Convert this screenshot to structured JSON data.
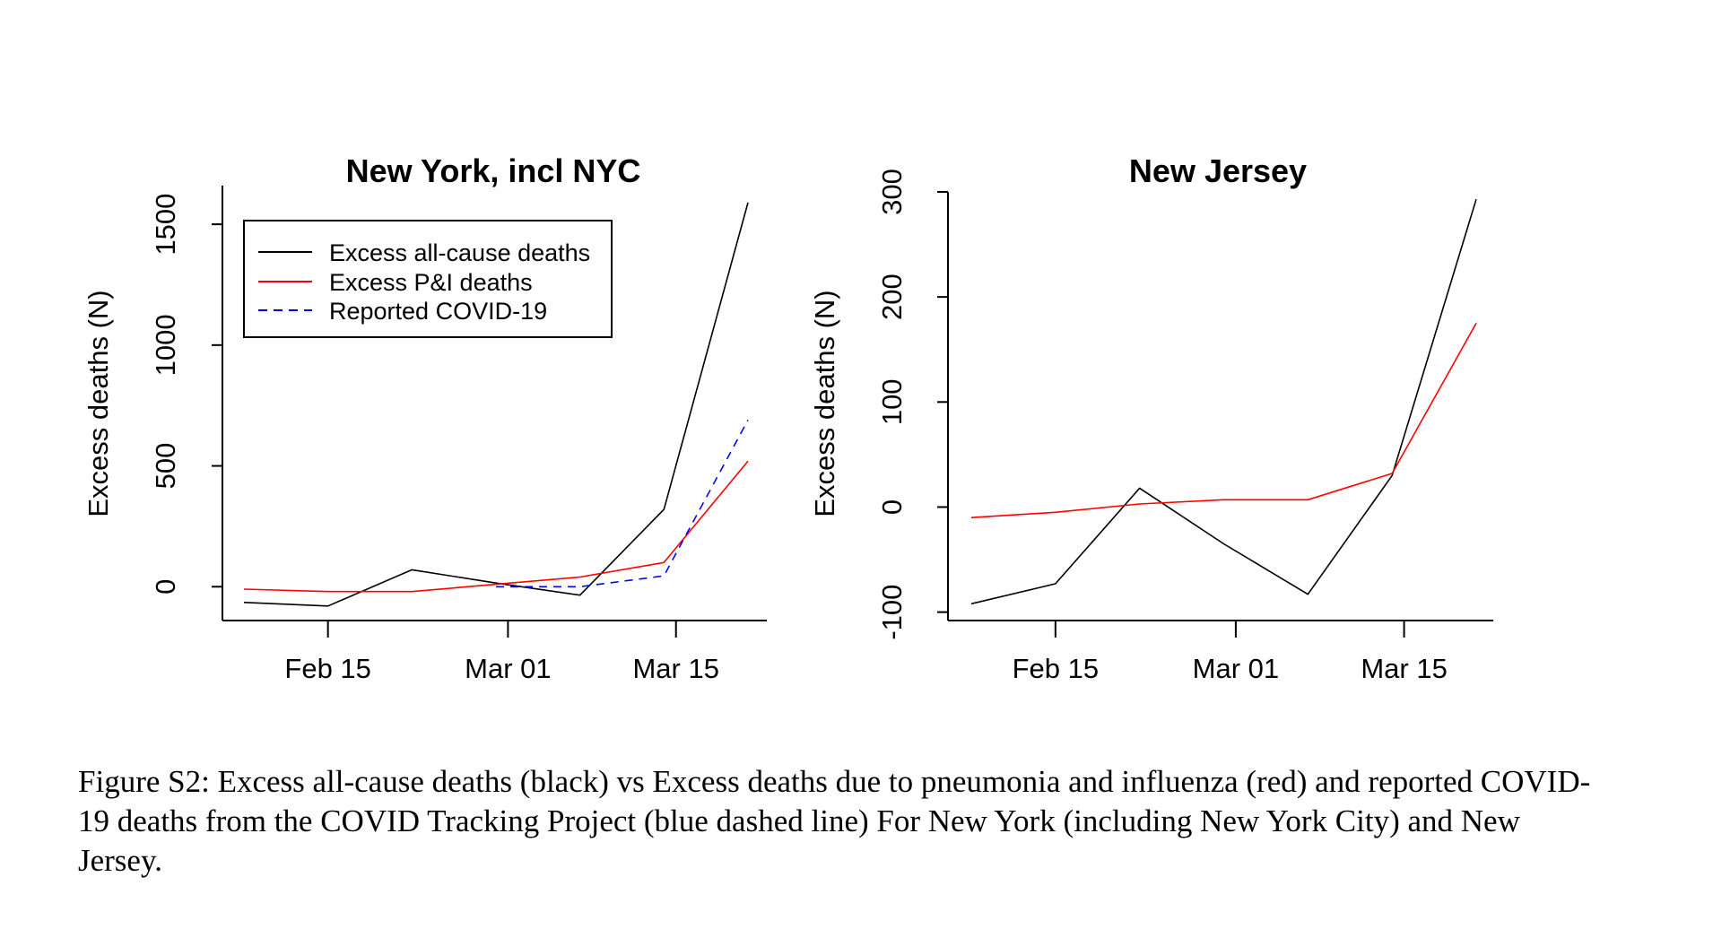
{
  "caption": "Figure S2: Excess all-cause deaths (black) vs Excess deaths due to pneumonia and influenza (red) and reported COVID-19 deaths from the COVID Tracking Project (blue dashed line) For New York (including New York City) and New Jersey.",
  "chart_data": [
    {
      "type": "line",
      "title": "New York, incl NYC",
      "xlabel": "",
      "ylabel": "Excess deaths (N)",
      "x_ticks": [
        "Feb 15",
        "Mar 01",
        "Mar 15"
      ],
      "y_ticks": [
        0,
        500,
        1000,
        1500
      ],
      "ylim": [
        -140,
        1660
      ],
      "x": [
        "2020-02-08",
        "2020-02-15",
        "2020-02-22",
        "2020-02-29",
        "2020-03-07",
        "2020-03-14",
        "2020-03-21"
      ],
      "legend_position": "top-left",
      "series": [
        {
          "name": "Excess all-cause deaths",
          "color": "#000000",
          "dash": "solid",
          "values": [
            -65,
            -80,
            70,
            15,
            -35,
            320,
            1590
          ]
        },
        {
          "name": "Excess P&I deaths",
          "color": "#ff0000",
          "dash": "solid",
          "values": [
            -10,
            -20,
            -20,
            10,
            40,
            100,
            520
          ]
        },
        {
          "name": "Reported COVID-19",
          "color": "#0000ff",
          "dash": "dashed",
          "x": [
            "2020-02-29",
            "2020-03-07",
            "2020-03-14",
            "2020-03-21"
          ],
          "values": [
            0,
            0,
            45,
            690
          ]
        }
      ],
      "legend": [
        "Excess all-cause deaths",
        "Excess P&I deaths",
        "Reported COVID-19"
      ]
    },
    {
      "type": "line",
      "title": "New Jersey",
      "xlabel": "",
      "ylabel": "Excess deaths (N)",
      "x_ticks": [
        "Feb 15",
        "Mar 01",
        "Mar 15"
      ],
      "y_ticks": [
        -100,
        0,
        100,
        200,
        300
      ],
      "ylim": [
        -108,
        300
      ],
      "x": [
        "2020-02-08",
        "2020-02-15",
        "2020-02-22",
        "2020-02-29",
        "2020-03-07",
        "2020-03-14",
        "2020-03-21"
      ],
      "series": [
        {
          "color": "#000000",
          "dash": "solid",
          "values": [
            -92,
            -73,
            18,
            -35,
            -83,
            30,
            293
          ]
        },
        {
          "color": "#ff0000",
          "dash": "solid",
          "values": [
            -10,
            -5,
            3,
            7,
            7,
            32,
            175
          ]
        }
      ]
    }
  ]
}
